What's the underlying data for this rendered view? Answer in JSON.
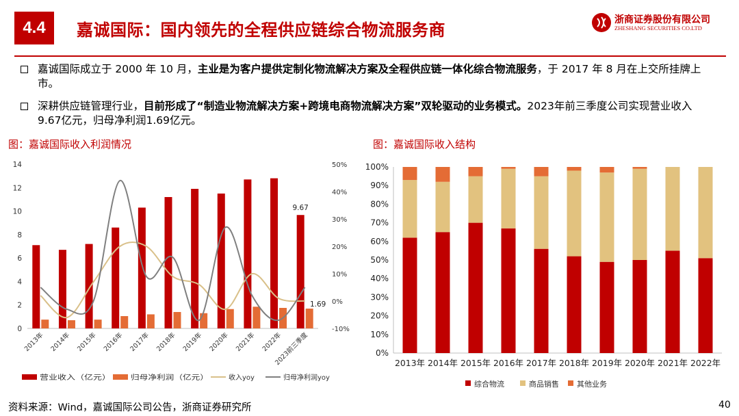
{
  "header": {
    "section": "4.4",
    "title": "嘉诚国际：国内领先的全程供应链综合物流服务商",
    "logo_cn": "浙商证券股份有限公司",
    "logo_en": "ZHESHANG SECURITIES CO.LTD"
  },
  "bullets": [
    {
      "pre": "嘉诚国际成立于 2000 年 10 月，",
      "bold": "主业是为客户提供定制化物流解决方案及全程供应链一体化综合物流服务",
      "post": "，于 2017 年 8 月在上交所挂牌上市。"
    },
    {
      "pre": "深耕供应链管理行业，",
      "bold": "目前形成了“制造业物流解决方案+跨境电商物流解决方案”双轮驱动的业务模式。",
      "post": "2023年前三季度公司实现营业收入9.67亿元，归母净利润1.69亿元。"
    }
  ],
  "footer": {
    "source": "资料来源：Wind，嘉诚国际公司公告，浙商证券研究所",
    "page": "40"
  },
  "colors": {
    "accent": "#c00000",
    "bar_light": "#e46c35",
    "yoy_rev": "#d9c089",
    "yoy_np": "#7f7f7f",
    "beige": "#e2c27f"
  },
  "chart_data": [
    {
      "type": "bar",
      "title": "图：嘉诚国际收入利润情况",
      "categories": [
        "2013年",
        "2014年",
        "2015年",
        "2016年",
        "2017年",
        "2018年",
        "2019年",
        "2020年",
        "2021年",
        "2022年",
        "2023前三季度"
      ],
      "left_ylim": [
        0,
        14
      ],
      "left_ticks": [
        "0",
        "2",
        "4",
        "6",
        "8",
        "10",
        "12",
        "14"
      ],
      "right_ylim": [
        -10,
        50
      ],
      "right_ticks": [
        "-10%",
        "0%",
        "10%",
        "20%",
        "30%",
        "40%",
        "50%"
      ],
      "series": [
        {
          "name": "营业收入（亿元）",
          "kind": "bar",
          "axis": "left",
          "values": [
            7.1,
            6.7,
            7.2,
            8.6,
            10.3,
            11.2,
            11.9,
            11.5,
            12.7,
            12.8,
            9.67
          ]
        },
        {
          "name": "归母净利润（亿元）",
          "kind": "bar",
          "axis": "left",
          "values": [
            0.75,
            0.7,
            0.75,
            1.05,
            1.2,
            1.4,
            1.3,
            1.65,
            1.85,
            1.75,
            1.69
          ]
        },
        {
          "name": "收入yoy",
          "kind": "line",
          "axis": "right",
          "values": [
            2,
            -6,
            7,
            20,
            20,
            9,
            6,
            -3,
            10,
            1,
            0
          ]
        },
        {
          "name": "归母净利润yoy",
          "kind": "line",
          "axis": "right",
          "values": [
            5,
            -3,
            0,
            44,
            9,
            16,
            -7,
            27,
            2,
            -7,
            5
          ]
        }
      ],
      "data_labels": [
        {
          "series": 0,
          "index": 10,
          "text": "9.67"
        },
        {
          "series": 1,
          "index": 10,
          "text": "1.69"
        }
      ]
    },
    {
      "type": "bar",
      "stacked": true,
      "title": "图：嘉诚国际收入结构",
      "categories": [
        "2013年",
        "2014年",
        "2015年",
        "2016年",
        "2017年",
        "2018年",
        "2019年",
        "2020年",
        "2021年",
        "2022年"
      ],
      "ylim": [
        0,
        100
      ],
      "ticks": [
        "0%",
        "10%",
        "20%",
        "30%",
        "40%",
        "50%",
        "60%",
        "70%",
        "80%",
        "90%",
        "100%"
      ],
      "legend_position": "bottom",
      "series": [
        {
          "name": "综合物流",
          "values": [
            62,
            65,
            70,
            67,
            56,
            52,
            49,
            50,
            55,
            51
          ]
        },
        {
          "name": "商品销售",
          "values": [
            31,
            27,
            25,
            32,
            39,
            46,
            48,
            49,
            45,
            49
          ]
        },
        {
          "name": "其他业务",
          "values": [
            7,
            8,
            5,
            1,
            5,
            2,
            3,
            1,
            0,
            0
          ]
        }
      ]
    }
  ]
}
